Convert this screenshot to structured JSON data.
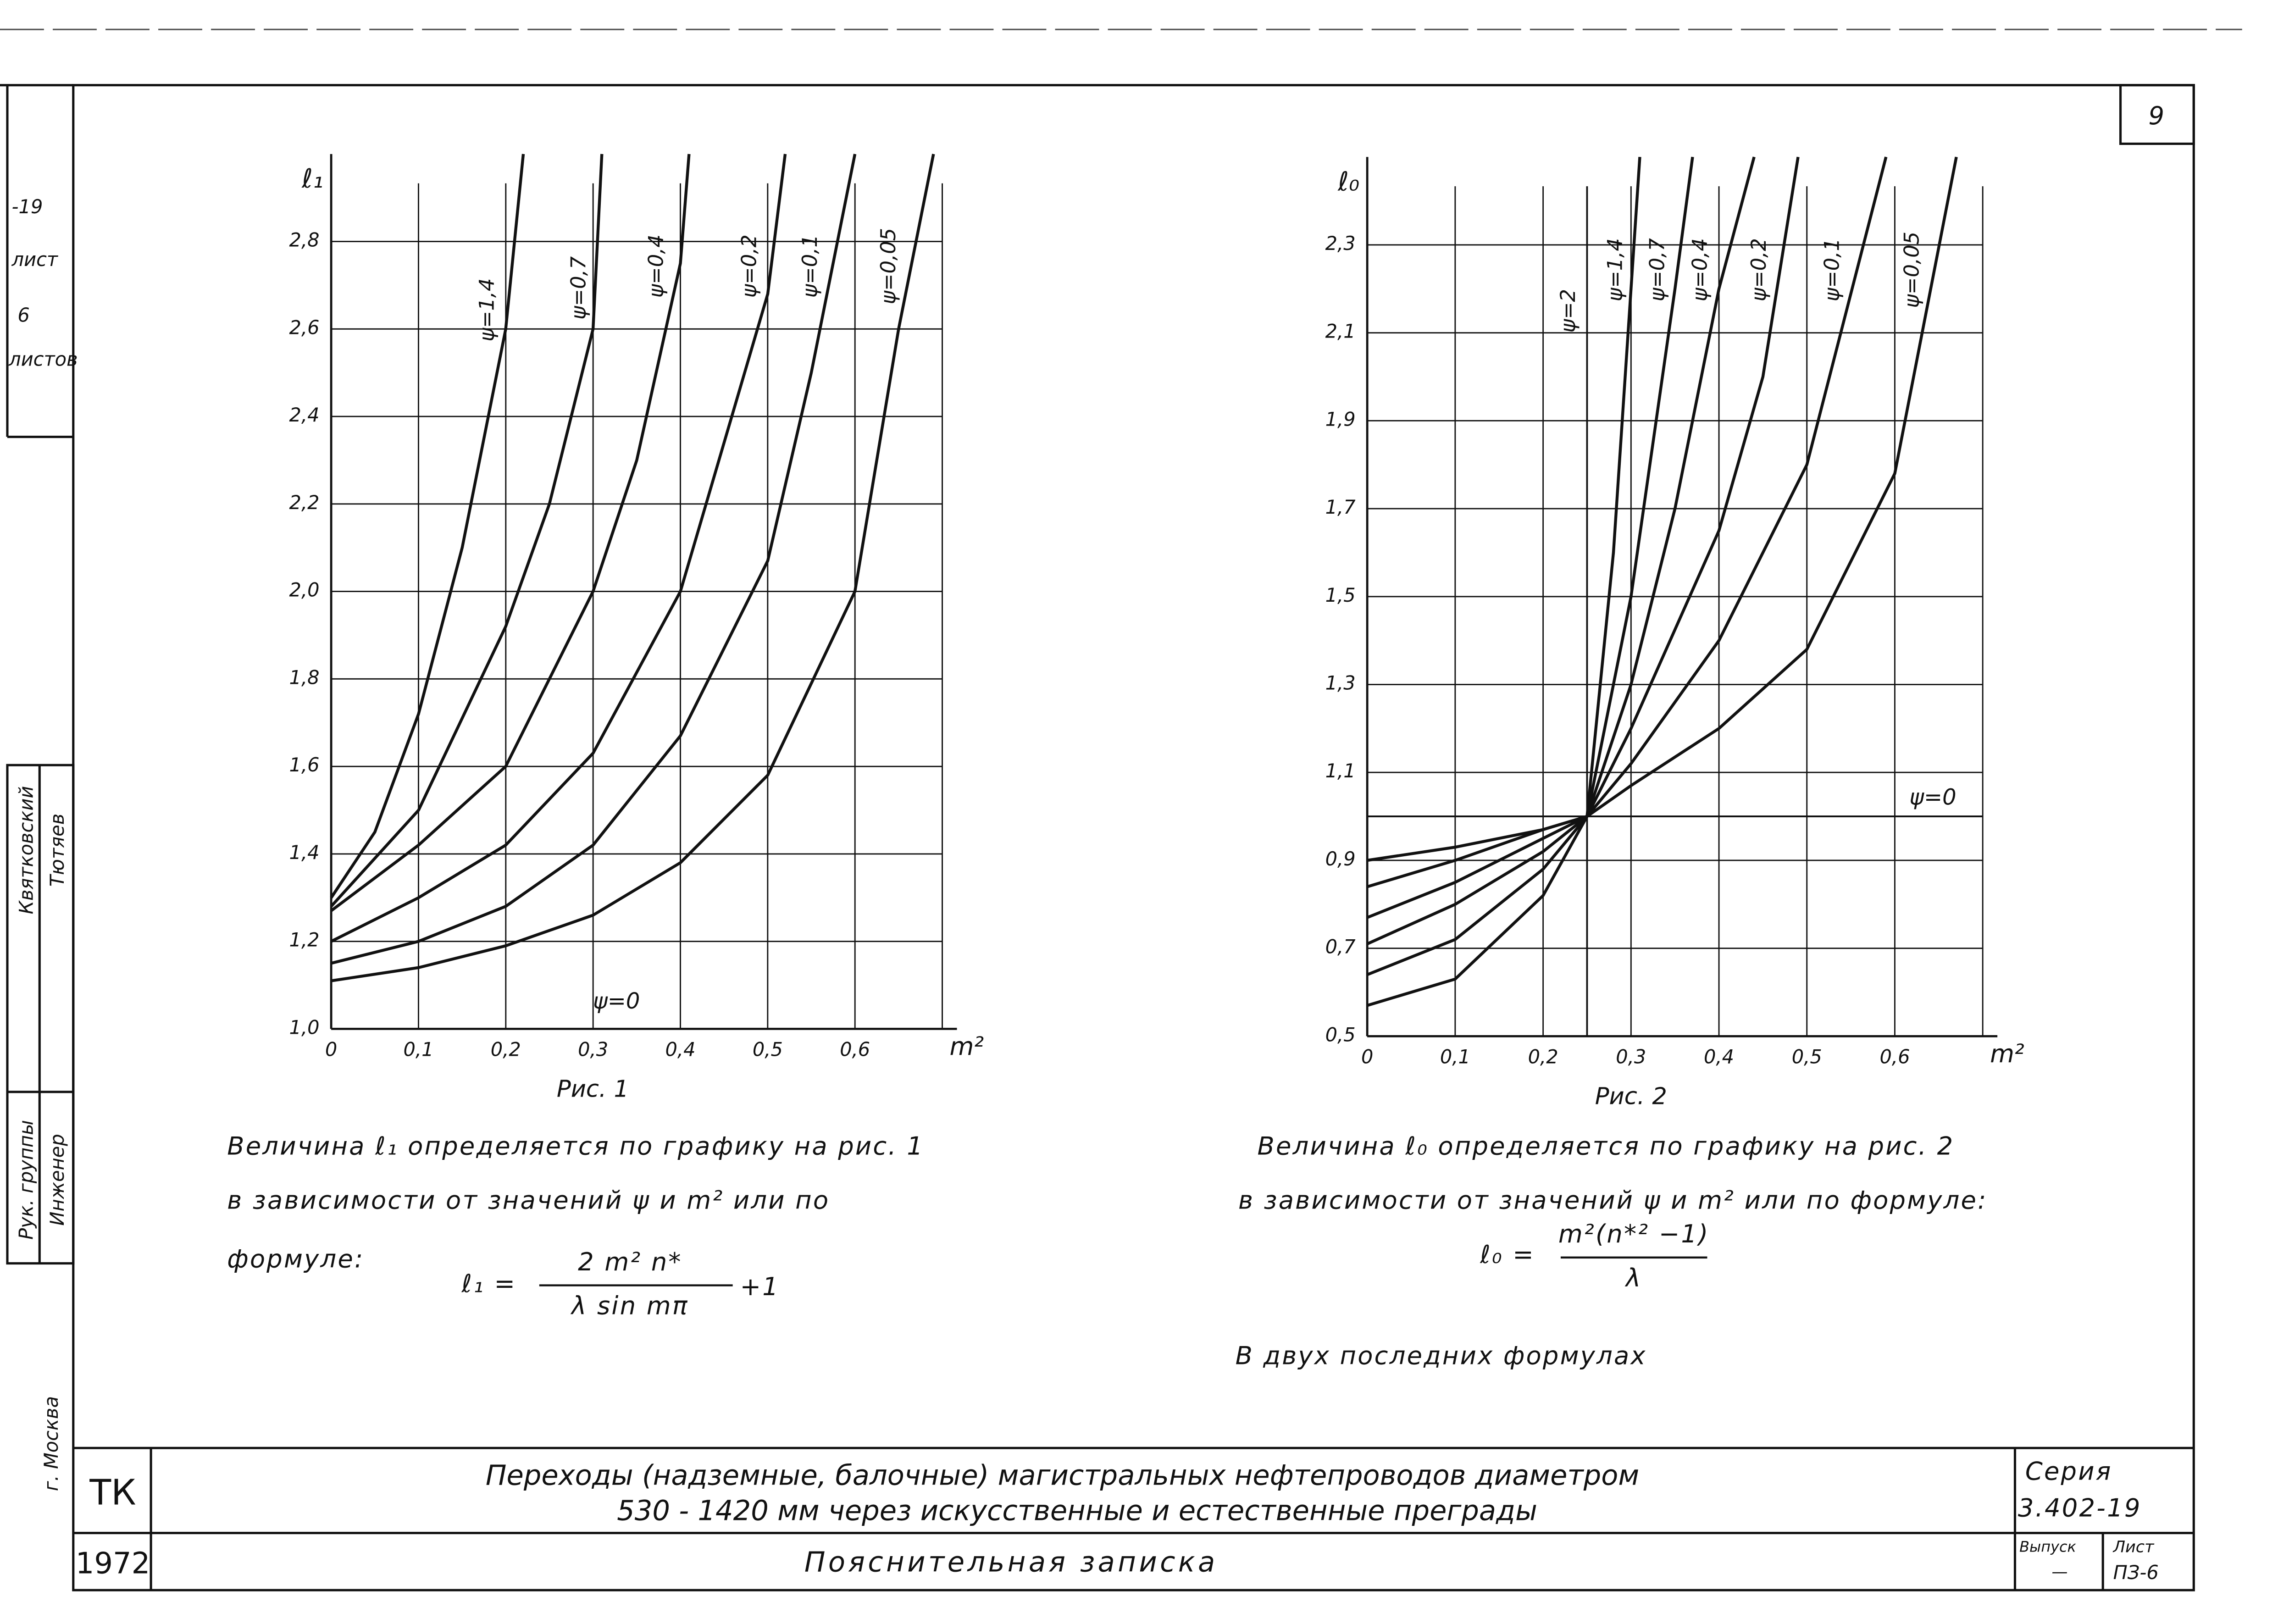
{
  "sheet_number": "9",
  "left_strip": [
    "-19",
    "лист",
    "6",
    "листов"
  ],
  "signatures": {
    "roles": [
      "Рук. группы",
      "Инженер"
    ],
    "names": [
      "Квятковский",
      "Тютяев"
    ]
  },
  "city": "г. Москва",
  "chart_data": [
    {
      "type": "line",
      "caption": "Рис. 1",
      "ylabel": "ℓ₁",
      "xlabel": "m²",
      "xlim": [
        0,
        0.7
      ],
      "ylim": [
        1.0,
        3.0
      ],
      "xticks": [
        0,
        {
          "value": 0.1,
          "label": "0,1"
        },
        {
          "value": 0.2,
          "label": "0,2"
        },
        {
          "value": 0.3,
          "label": "0,3"
        },
        {
          "value": 0.4,
          "label": "0,4"
        },
        {
          "value": 0.5,
          "label": "0,5"
        },
        {
          "value": 0.6,
          "label": "0,6"
        },
        0.7
      ],
      "yticks": [
        {
          "value": 1.0,
          "label": "1,0"
        },
        {
          "value": 1.2,
          "label": "1,2"
        },
        {
          "value": 1.4,
          "label": "1,4"
        },
        {
          "value": 1.6,
          "label": "1,6"
        },
        {
          "value": 1.8,
          "label": "1,8"
        },
        {
          "value": 2.0,
          "label": "2,0"
        },
        {
          "value": 2.2,
          "label": "2,2"
        },
        {
          "value": 2.4,
          "label": "2,4"
        },
        {
          "value": 2.6,
          "label": "2,6"
        },
        {
          "value": 2.8,
          "label": "2,8"
        }
      ],
      "grid": true,
      "color": "#111111",
      "annotation": "ψ=0",
      "series": [
        {
          "name": "ψ=1,4",
          "x": [
            0,
            0.05,
            0.1,
            0.15,
            0.2,
            0.22
          ],
          "values": [
            1.3,
            1.45,
            1.72,
            2.1,
            2.6,
            3.0
          ]
        },
        {
          "name": "ψ=0,7",
          "x": [
            0,
            0.1,
            0.2,
            0.25,
            0.3,
            0.31
          ],
          "values": [
            1.28,
            1.5,
            1.92,
            2.2,
            2.6,
            3.0
          ]
        },
        {
          "name": "ψ=0,4",
          "x": [
            0,
            0.1,
            0.2,
            0.3,
            0.35,
            0.4,
            0.41
          ],
          "values": [
            1.27,
            1.42,
            1.6,
            2.0,
            2.3,
            2.75,
            3.0
          ]
        },
        {
          "name": "ψ=0,2",
          "x": [
            0,
            0.1,
            0.2,
            0.3,
            0.4,
            0.5,
            0.52
          ],
          "values": [
            1.2,
            1.3,
            1.42,
            1.63,
            2.0,
            2.68,
            3.0
          ]
        },
        {
          "name": "ψ=0,1",
          "x": [
            0,
            0.1,
            0.2,
            0.3,
            0.4,
            0.5,
            0.55,
            0.6
          ],
          "values": [
            1.15,
            1.2,
            1.28,
            1.42,
            1.67,
            2.07,
            2.5,
            3.0
          ]
        },
        {
          "name": "ψ=0,05",
          "x": [
            0,
            0.1,
            0.2,
            0.3,
            0.4,
            0.5,
            0.6,
            0.65,
            0.69
          ],
          "values": [
            1.11,
            1.14,
            1.19,
            1.26,
            1.38,
            1.58,
            2.0,
            2.6,
            3.0
          ]
        }
      ]
    },
    {
      "type": "line",
      "caption": "Рис. 2",
      "ylabel": "ℓ₀",
      "xlabel": "m²",
      "xlim": [
        0,
        0.7
      ],
      "ylim": [
        0.5,
        2.5
      ],
      "xticks": [
        0,
        {
          "value": 0.1,
          "label": "0,1"
        },
        {
          "value": 0.2,
          "label": "0,2"
        },
        {
          "value": 0.3,
          "label": "0,3"
        },
        {
          "value": 0.4,
          "label": "0,4"
        },
        {
          "value": 0.5,
          "label": "0,5"
        },
        {
          "value": 0.6,
          "label": "0,6"
        },
        0.7
      ],
      "yticks": [
        {
          "value": 0.5,
          "label": "0,5"
        },
        {
          "value": 0.7,
          "label": "0,7"
        },
        {
          "value": 0.9,
          "label": "0,9"
        },
        {
          "value": 1.1,
          "label": "1,1"
        },
        {
          "value": 1.3,
          "label": "1,3"
        },
        {
          "value": 1.5,
          "label": "1,5"
        },
        {
          "value": 1.7,
          "label": "1,7"
        },
        {
          "value": 1.9,
          "label": "1,9"
        },
        {
          "value": 2.1,
          "label": "2,1"
        },
        {
          "value": 2.3,
          "label": "2,3"
        }
      ],
      "grid": true,
      "color": "#111111",
      "reference_line": {
        "y": 1.0,
        "label": "ψ=0"
      },
      "reference_x": {
        "x": 0.25,
        "label": "ψ=2"
      },
      "series": [
        {
          "name": "ψ=1,4",
          "x": [
            0,
            0.1,
            0.2,
            0.25,
            0.28,
            0.3,
            0.31
          ],
          "values": [
            0.57,
            0.63,
            0.82,
            1.0,
            1.6,
            2.2,
            2.5
          ]
        },
        {
          "name": "ψ=0,7",
          "x": [
            0,
            0.1,
            0.2,
            0.25,
            0.3,
            0.35,
            0.37
          ],
          "values": [
            0.64,
            0.72,
            0.88,
            1.0,
            1.5,
            2.2,
            2.5
          ]
        },
        {
          "name": "ψ=0,4",
          "x": [
            0,
            0.1,
            0.2,
            0.25,
            0.3,
            0.35,
            0.4,
            0.44
          ],
          "values": [
            0.71,
            0.8,
            0.92,
            1.0,
            1.3,
            1.7,
            2.2,
            2.5
          ]
        },
        {
          "name": "ψ=0,2",
          "x": [
            0,
            0.1,
            0.2,
            0.25,
            0.3,
            0.4,
            0.45,
            0.49
          ],
          "values": [
            0.77,
            0.85,
            0.95,
            1.0,
            1.2,
            1.65,
            2.0,
            2.5
          ]
        },
        {
          "name": "ψ=0,1",
          "x": [
            0,
            0.1,
            0.2,
            0.25,
            0.3,
            0.4,
            0.5,
            0.59
          ],
          "values": [
            0.84,
            0.9,
            0.97,
            1.0,
            1.12,
            1.4,
            1.8,
            2.5
          ]
        },
        {
          "name": "ψ=0,05",
          "x": [
            0,
            0.1,
            0.2,
            0.25,
            0.3,
            0.4,
            0.5,
            0.6,
            0.67
          ],
          "values": [
            0.9,
            0.93,
            0.97,
            1.0,
            1.07,
            1.2,
            1.38,
            1.78,
            2.5
          ]
        }
      ]
    }
  ],
  "notes": {
    "left": [
      "Величина ℓ₁ определяется по графику на рис. 1",
      "в зависимости от значений ψ и m² или по",
      "формуле:"
    ],
    "left_formula": {
      "lhs": "ℓ₁ =",
      "numerator": "2 m² n*",
      "denominator": "λ sin mπ",
      "tail": "+1"
    },
    "right": [
      "Величина ℓ₀ определяется по графику на рис. 2",
      "в зависимости от значений ψ и m² или по формуле:"
    ],
    "right_formula": {
      "lhs": "ℓ₀ =",
      "numerator": "m²(n*² −1)",
      "denominator": "λ"
    },
    "closing": "В двух последних формулах"
  },
  "title_block": {
    "code": "ТК",
    "year": "1972",
    "title": [
      "Переходы (надземные, балочные) магистральных нефтепроводов диаметром",
      "530 - 1420 мм через искусственные и естественные преграды"
    ],
    "subtitle": "Пояснительная записка",
    "series_label": "Серия",
    "series": "3.402-19",
    "issue_label": "Выпуск",
    "issue": "—",
    "sheet_label": "Лист",
    "sheet": "ПЗ-6"
  }
}
